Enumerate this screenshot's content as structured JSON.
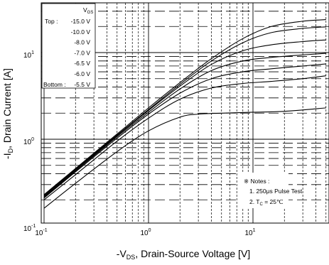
{
  "chart_data": {
    "type": "line",
    "title": "",
    "xlabel": {
      "prefix": "-V",
      "sub": "DS",
      "suffix": ", Drain-Source Voltage [V]"
    },
    "ylabel": {
      "prefix": "-I",
      "sub": "D",
      "suffix": ", Drain Current [A]"
    },
    "x_scale": "log",
    "y_scale": "log",
    "xlim": [
      0.1,
      50
    ],
    "ylim": [
      0.1,
      40
    ],
    "grid": true,
    "x_ticks": [
      {
        "value": 0.1,
        "base": "10",
        "exp": "-1"
      },
      {
        "value": 1,
        "base": "10",
        "exp": "0"
      },
      {
        "value": 10,
        "base": "10",
        "exp": "1"
      }
    ],
    "y_ticks": [
      {
        "value": 0.1,
        "base": "10",
        "exp": "-1"
      },
      {
        "value": 1,
        "base": "10",
        "exp": "0"
      },
      {
        "value": 10,
        "base": "10",
        "exp": "1"
      }
    ],
    "legend": {
      "placement": "top-left",
      "header": {
        "prefix": "V",
        "sub": "GS"
      },
      "top_label": "Top :",
      "bottom_label": "Bottom :",
      "entries": [
        "-15.0 V",
        "-10.0 V",
        "-8.0 V",
        "-7.0 V",
        "-6.5 V",
        "-6.0 V",
        "-5.5 V"
      ]
    },
    "notes": {
      "placement": "bottom-right",
      "title": "※ Notes :",
      "line1": "1. 250μs Pulse Test",
      "line2": {
        "prefix": "2. T",
        "sub": "C",
        "suffix": " = 25℃"
      }
    },
    "series": [
      {
        "vgs": -15.0,
        "x": [
          0.1,
          0.2,
          0.5,
          1,
          2,
          4,
          8,
          15,
          30,
          50
        ],
        "y": [
          0.23,
          0.46,
          1.15,
          2.3,
          4.5,
          8.5,
          14.5,
          20,
          23,
          24
        ]
      },
      {
        "vgs": -10.0,
        "x": [
          0.1,
          0.2,
          0.5,
          1,
          2,
          4,
          8,
          15,
          30,
          50
        ],
        "y": [
          0.225,
          0.45,
          1.12,
          2.2,
          4.3,
          8.0,
          13.0,
          17.0,
          19.0,
          19.8
        ]
      },
      {
        "vgs": -8.0,
        "x": [
          0.1,
          0.2,
          0.5,
          1,
          2,
          4,
          8,
          15,
          30,
          50
        ],
        "y": [
          0.22,
          0.44,
          1.1,
          2.15,
          4.1,
          7.3,
          10.5,
          12.3,
          13.4,
          14.0
        ]
      },
      {
        "vgs": -7.0,
        "x": [
          0.1,
          0.2,
          0.5,
          1,
          2,
          4,
          8,
          15,
          30,
          50
        ],
        "y": [
          0.215,
          0.43,
          1.07,
          2.05,
          3.8,
          6.2,
          8.0,
          8.8,
          9.4,
          9.8
        ]
      },
      {
        "vgs": -6.5,
        "x": [
          0.1,
          0.2,
          0.5,
          1,
          2,
          4,
          8,
          15,
          30,
          50
        ],
        "y": [
          0.21,
          0.42,
          1.03,
          1.95,
          3.4,
          5.0,
          6.0,
          6.5,
          7.0,
          7.4
        ]
      },
      {
        "vgs": -6.0,
        "x": [
          0.1,
          0.2,
          0.5,
          1,
          2,
          4,
          8,
          15,
          30,
          50
        ],
        "y": [
          0.2,
          0.39,
          0.95,
          1.75,
          2.9,
          3.9,
          4.4,
          4.65,
          5.0,
          5.4
        ]
      },
      {
        "vgs": -5.5,
        "x": [
          0.1,
          0.2,
          0.5,
          1,
          2,
          3,
          5,
          10,
          20,
          50
        ],
        "y": [
          0.16,
          0.31,
          0.72,
          1.25,
          1.8,
          1.95,
          2.0,
          2.05,
          2.1,
          2.3
        ]
      }
    ],
    "colors": {
      "line": "#000000",
      "grid": "#000000",
      "background": "#ffffff"
    }
  }
}
